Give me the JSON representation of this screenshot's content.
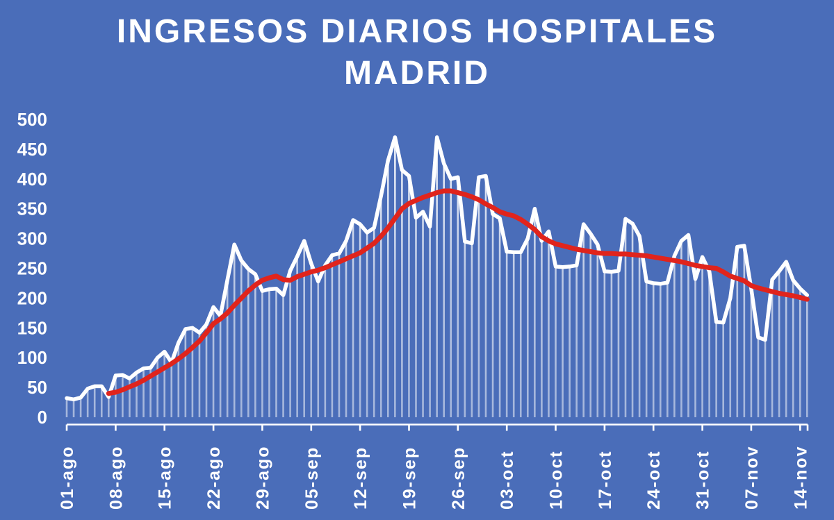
{
  "title": {
    "line1": "INGRESOS DIARIOS HOSPITALES",
    "line2": "MADRID"
  },
  "colors": {
    "background": "#4a6db9",
    "title_text": "#ffffff",
    "axis_text": "#ffffff",
    "axis_line": "#ffffff",
    "daily_line": "#ffffff",
    "daily_bars": "#ffffff",
    "trend_line": "#e0241c"
  },
  "chart_data": {
    "type": "combo-bar-line",
    "title": "INGRESOS DIARIOS HOSPITALES MADRID",
    "xlabel": "",
    "ylabel": "",
    "ylim": [
      0,
      500
    ],
    "y_ticks": [
      0,
      50,
      100,
      150,
      200,
      250,
      300,
      350,
      400,
      450,
      500
    ],
    "x_tick_labels": [
      "01-ago",
      "08-ago",
      "15-ago",
      "22-ago",
      "29-ago",
      "05-sep",
      "12-sep",
      "19-sep",
      "26-sep",
      "03-oct",
      "10-oct",
      "17-oct",
      "24-oct",
      "31-oct",
      "07-nov",
      "14-nov"
    ],
    "x_tick_interval_days": 7,
    "n_days": 107,
    "grid": false,
    "legend": "none",
    "series": [
      {
        "name": "ingresos_diarios",
        "chart_type": "bar+line",
        "color": "#ffffff",
        "values": [
          32,
          30,
          33,
          48,
          52,
          52,
          34,
          70,
          71,
          65,
          75,
          82,
          83,
          100,
          110,
          92,
          125,
          148,
          150,
          142,
          156,
          185,
          170,
          230,
          290,
          263,
          249,
          240,
          212,
          215,
          216,
          205,
          246,
          270,
          296,
          258,
          228,
          255,
          272,
          275,
          296,
          331,
          324,
          310,
          318,
          372,
          431,
          470,
          415,
          405,
          335,
          345,
          320,
          470,
          426,
          400,
          403,
          295,
          292,
          403,
          405,
          341,
          334,
          278,
          277,
          277,
          300,
          350,
          296,
          312,
          253,
          252,
          253,
          255,
          324,
          308,
          290,
          245,
          244,
          246,
          333,
          325,
          304,
          228,
          225,
          224,
          226,
          271,
          296,
          306,
          232,
          269,
          245,
          160,
          159,
          200,
          286,
          288,
          216,
          134,
          130,
          231,
          245,
          261,
          230,
          216,
          205
        ]
      },
      {
        "name": "media_suavizada",
        "chart_type": "line",
        "color": "#e0241c",
        "values": [
          null,
          null,
          null,
          null,
          null,
          null,
          40,
          42,
          46,
          51,
          56,
          62,
          69,
          76,
          83,
          90,
          98,
          107,
          117,
          128,
          142,
          157,
          165,
          175,
          188,
          200,
          212,
          222,
          230,
          234,
          237,
          231,
          230,
          236,
          240,
          244,
          247,
          251,
          256,
          261,
          266,
          271,
          276,
          284,
          292,
          304,
          318,
          334,
          350,
          359,
          364,
          369,
          373,
          377,
          380,
          380,
          377,
          374,
          370,
          365,
          358,
          352,
          345,
          341,
          338,
          332,
          324,
          315,
          303,
          296,
          291,
          288,
          285,
          282,
          280,
          278,
          276,
          275,
          275,
          274,
          274,
          273,
          272,
          271,
          269,
          267,
          265,
          263,
          261,
          258,
          255,
          253,
          251,
          250,
          244,
          237,
          233,
          229,
          221,
          217,
          214,
          211,
          208,
          206,
          204,
          201,
          198
        ]
      }
    ]
  }
}
